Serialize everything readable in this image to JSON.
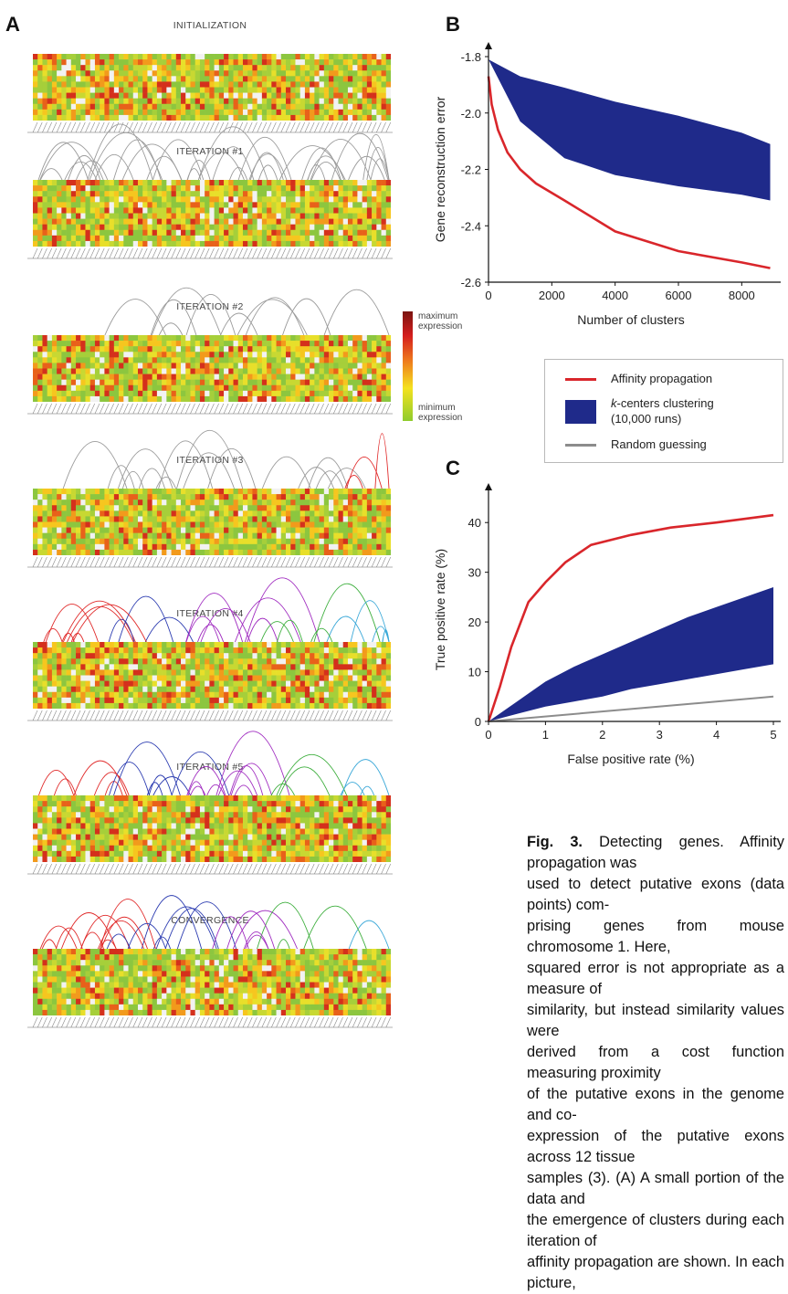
{
  "panel_a": {
    "letter": "A",
    "stages": [
      {
        "title": "INITIALIZATION",
        "arcs": "none"
      },
      {
        "title": "ITERATION #1",
        "arcs": "gray-dense"
      },
      {
        "title": "ITERATION #2",
        "arcs": "gray-sparse"
      },
      {
        "title": "ITERATION #3",
        "arcs": "gray-mixed"
      },
      {
        "title": "ITERATION #4",
        "arcs": "colored"
      },
      {
        "title": "ITERATION #5",
        "arcs": "colored"
      },
      {
        "title": "CONVERGENCE",
        "arcs": "colored"
      }
    ],
    "color_scale": {
      "max_label_1": "maximum",
      "max_label_2": "expression",
      "min_label_1": "minimum",
      "min_label_2": "expression"
    }
  },
  "panel_b": {
    "letter": "B",
    "chart_data": {
      "type": "line",
      "xlabel": "Number of clusters",
      "ylabel": "Gene reconstruction error",
      "xlim": [
        0,
        9000
      ],
      "ylim": [
        -2.6,
        -1.8
      ],
      "xticks": [
        "0",
        "2000",
        "4000",
        "6000",
        "8000"
      ],
      "yticks": [
        "-1.8",
        "-2.0",
        "-2.2",
        "-2.4",
        "-2.6"
      ],
      "series": [
        {
          "name": "Affinity propagation",
          "kind": "line",
          "x": [
            0,
            100,
            300,
            600,
            1000,
            1500,
            2400,
            4000,
            6000,
            8000,
            8900
          ],
          "y": [
            -1.87,
            -1.97,
            -2.06,
            -2.14,
            -2.2,
            -2.25,
            -2.31,
            -2.42,
            -2.49,
            -2.53,
            -2.55
          ]
        },
        {
          "name": "k-centers clustering (10,000 runs)",
          "kind": "band",
          "x": [
            0,
            1000,
            2400,
            4000,
            6000,
            8000,
            8900
          ],
          "upper": [
            -1.81,
            -1.87,
            -1.91,
            -1.96,
            -2.01,
            -2.07,
            -2.11
          ],
          "lower": [
            -1.81,
            -2.03,
            -2.16,
            -2.22,
            -2.26,
            -2.29,
            -2.31
          ]
        }
      ]
    }
  },
  "legend": {
    "items": [
      {
        "label": "Affinity propagation",
        "color": "#d9262b",
        "kind": "line"
      },
      {
        "label_italic": "k",
        "label": "-centers clustering",
        "label_2": "(10,000 runs)",
        "color": "#1f2a8a",
        "kind": "box"
      },
      {
        "label": "Random guessing",
        "color": "#8c8c8c",
        "kind": "line"
      }
    ]
  },
  "panel_c": {
    "letter": "C",
    "chart_data": {
      "type": "line",
      "xlabel": "False positive rate (%)",
      "ylabel": "True positive rate (%)",
      "xlim": [
        0,
        5
      ],
      "ylim": [
        0,
        45
      ],
      "xticks": [
        "0",
        "1",
        "2",
        "3",
        "4",
        "5"
      ],
      "yticks": [
        "0",
        "10",
        "20",
        "30",
        "40"
      ],
      "series": [
        {
          "name": "Affinity propagation",
          "kind": "line",
          "x": [
            0,
            0.2,
            0.4,
            0.7,
            1.0,
            1.35,
            1.8,
            2.5,
            3.2,
            4.0,
            5.0
          ],
          "y": [
            0,
            7,
            15,
            24,
            28,
            32,
            35.5,
            37.5,
            39,
            40,
            41.5
          ]
        },
        {
          "name": "k-centers clustering (10,000 runs)",
          "kind": "band",
          "x": [
            0,
            0.5,
            1.0,
            1.5,
            2.0,
            2.5,
            3.0,
            3.5,
            4.0,
            4.5,
            5.0
          ],
          "upper": [
            0,
            4,
            8,
            11,
            13.5,
            16,
            18.5,
            21,
            23,
            25,
            27
          ],
          "lower": [
            0,
            1.5,
            3,
            4,
            5,
            6.5,
            7.5,
            8.5,
            9.5,
            10.5,
            11.5
          ]
        },
        {
          "name": "Random guessing",
          "kind": "line",
          "x": [
            0,
            5
          ],
          "y": [
            0,
            5
          ]
        }
      ]
    }
  },
  "caption": {
    "label": "Fig. 3.",
    "lines": [
      "Detecting genes. Affinity propagation was",
      "used to detect putative exons (data points) com-",
      "prising genes from mouse chromosome 1. Here,",
      "squared error is not appropriate as a measure of",
      "similarity, but instead similarity values were",
      "derived from a cost function measuring proximity",
      "of the putative exons in the genome and co-",
      "expression of the putative exons across 12 tissue",
      "samples (3). (A) A small portion of the data and",
      "the emergence of clusters during each iteration of",
      "affinity propagation are shown. In each picture,"
    ]
  }
}
